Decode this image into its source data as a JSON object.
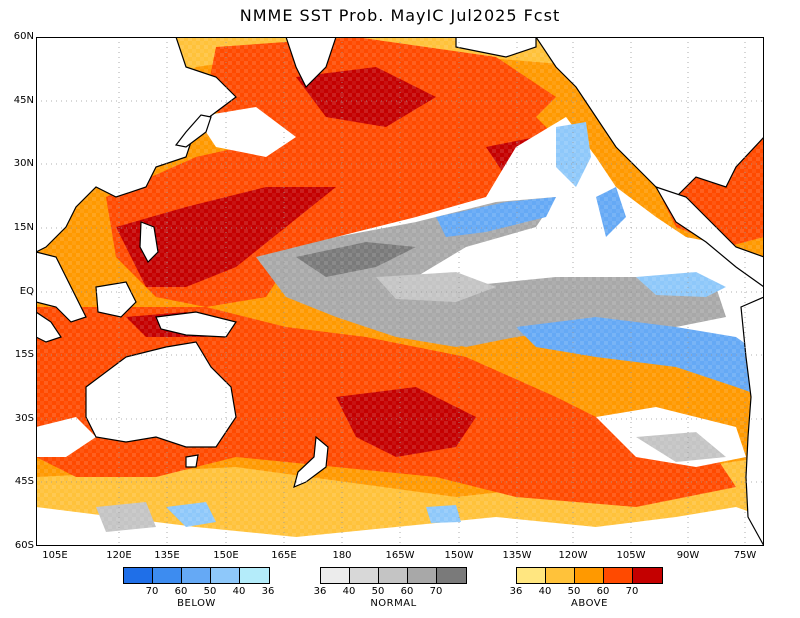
{
  "title": "NMME SST Prob. MayIC  Jul2025 Fcst",
  "lat_labels": [
    "60N",
    "45N",
    "30N",
    "15N",
    "EQ",
    "15S",
    "30S",
    "45S",
    "60S"
  ],
  "lon_labels": [
    "105E",
    "120E",
    "135E",
    "150E",
    "165E",
    "180",
    "165W",
    "150W",
    "135W",
    "120W",
    "105W",
    "90W",
    "75W"
  ],
  "legends": {
    "below": {
      "title": "BELOW",
      "ticks": [
        "70",
        "60",
        "50",
        "40",
        "36"
      ],
      "colors": [
        "#1f6fe8",
        "#3d8cf0",
        "#65a9f5",
        "#8ec8fa",
        "#b4ecfa"
      ]
    },
    "normal": {
      "title": "NORMAL",
      "ticks": [
        "36",
        "40",
        "50",
        "60",
        "70"
      ],
      "colors": [
        "#ececec",
        "#d8d8d8",
        "#c4c4c4",
        "#a8a8a8",
        "#7a7a7a"
      ]
    },
    "above": {
      "title": "ABOVE",
      "ticks": [
        "36",
        "40",
        "50",
        "60",
        "70"
      ],
      "colors": [
        "#ffe680",
        "#ffc23a",
        "#ff9900",
        "#ff4a00",
        "#c40000"
      ]
    }
  }
}
